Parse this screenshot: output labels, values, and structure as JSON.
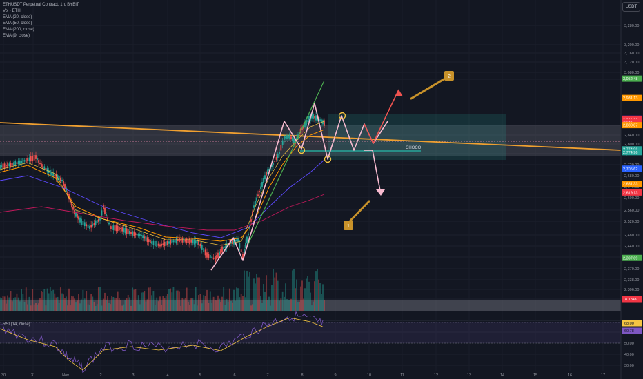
{
  "header": {
    "symbol_line": "ETHUSDT Perpetual Contract, 1h, BYBIT",
    "volume_line": "Vol · ETH",
    "ema_lines": [
      "EMA (20, close)",
      "EMA (50, close)",
      "EMA (200, close)",
      "EMA (9, close)"
    ],
    "unit": "USDT",
    "rsi_title": "RSI (14, close)"
  },
  "chart_data": {
    "type": "line",
    "price_axis": {
      "ticks": [
        3280,
        3200,
        3160,
        3120,
        3080,
        3050,
        2880,
        2840,
        2800,
        2760,
        2720,
        2680,
        2640,
        2600,
        2560,
        2520,
        2480,
        2440,
        2400,
        2370,
        2338,
        2306,
        2276
      ],
      "tick_labels": [
        "3,280.00",
        "3,200.00",
        "3,160.00",
        "3,120.00",
        "3,080.00",
        "3,050.00",
        "2,880.00",
        "2,840.00",
        "2,800.00",
        "2,760.00",
        "2,720.00",
        "2,680.00",
        "2,640.00",
        "2,600.00",
        "2,560.00",
        "2,520.00",
        "2,480.00",
        "2,440.00",
        "2,400.00",
        "2,370.00",
        "2,338.00",
        "2,306.00",
        "2,276.00"
      ],
      "range": [
        2250,
        3300
      ]
    },
    "time_axis": {
      "labels": [
        "30",
        "31",
        "Nov",
        "2",
        "3",
        "4",
        "5",
        "6",
        "7",
        "8",
        "9",
        "10",
        "11",
        "12",
        "13",
        "14",
        "15",
        "16",
        "17"
      ]
    },
    "price_badges": [
      {
        "label": "3,052.48",
        "color": "#4caf50"
      },
      {
        "label": "2,981.13",
        "color": "#ff9800"
      },
      {
        "label": "2,904.84",
        "color": "#9c27b0"
      },
      {
        "label": "2,901.80",
        "color": "#f23645"
      },
      {
        "label": "44:37",
        "color": "#f23645"
      },
      {
        "label": "2,880.87",
        "color": "#ff9800"
      },
      {
        "label": "2,774.96",
        "color": "#26a69a"
      },
      {
        "label": "2,774.96",
        "color": "#26a69a"
      },
      {
        "label": "2,705.62",
        "color": "#2962ff"
      },
      {
        "label": "2,651.33",
        "color": "#ff9800"
      },
      {
        "label": "2,619.13",
        "color": "#f23645"
      },
      {
        "label": "2,397.69",
        "color": "#4caf50"
      },
      {
        "label": "18.184K",
        "color": "#f23645"
      }
    ],
    "rsi_axis": {
      "tick_labels": [
        "60.00",
        "50.00",
        "40.00",
        "30.00"
      ]
    },
    "rsi_badges": [
      {
        "label": "68.00",
        "color": "#f5c542"
      },
      {
        "label": "60.78",
        "color": "#7e57c2"
      }
    ],
    "annotations": {
      "zone_label": "CHOCO",
      "callout_1": "1",
      "callout_2": "2"
    }
  }
}
